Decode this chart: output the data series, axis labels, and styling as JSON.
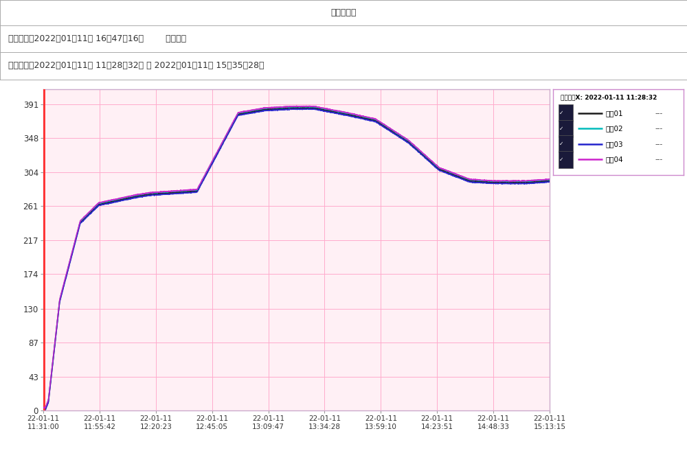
{
  "title": "趋势图打印",
  "header_line1": "打印时间：2022年01月11日 16时47分16秒        制表人：",
  "header_line2": "打印范围：2022年01月11日 11时28分32秒 到 2022年01月11日 15时35分28秒",
  "legend_title": "垂直游标X: 2022-01-11 11:28:32",
  "channels": [
    "通道01",
    "通道02",
    "通道03",
    "通道04"
  ],
  "channel_colors": [
    "#1a1a1a",
    "#00bbbb",
    "#2222cc",
    "#cc22cc"
  ],
  "yticks": [
    0,
    43,
    87,
    130,
    174,
    217,
    261,
    304,
    348,
    391
  ],
  "ymin": 0,
  "ymax": 410,
  "total_minutes": 246.93,
  "xtick_labels": [
    "22-01-11\n11:31:00",
    "22-01-11\n11:55:42",
    "22-01-11\n12:20:23",
    "22-01-11\n12:45:05",
    "22-01-11\n13:09:47",
    "22-01-11\n13:34:28",
    "22-01-11\n13:59:10",
    "22-01-11\n14:23:51",
    "22-01-11\n14:48:33",
    "22-01-11\n15:13:15"
  ],
  "t_points": [
    0,
    1,
    2.5,
    8,
    18,
    27,
    45,
    52,
    75,
    95,
    108,
    122,
    132,
    148,
    162,
    178,
    193,
    208,
    220,
    235,
    246.93
  ],
  "v_points": [
    2,
    2,
    12,
    140,
    240,
    263,
    273,
    276,
    280,
    378,
    384,
    386,
    386,
    378,
    370,
    343,
    308,
    293,
    291,
    291,
    293
  ],
  "plot_bg": "#fff0f5",
  "grid_color": "#ffaacc",
  "left_bar_color": "#ff3333",
  "outer_bg": "#ffffff",
  "border_color": "#ccaacc",
  "legend_border": "#cc88cc",
  "text_color": "#333333",
  "offsets": [
    0,
    1.5,
    -1.5,
    2.0
  ],
  "linewidths": [
    1.3,
    1.1,
    1.1,
    1.1
  ]
}
